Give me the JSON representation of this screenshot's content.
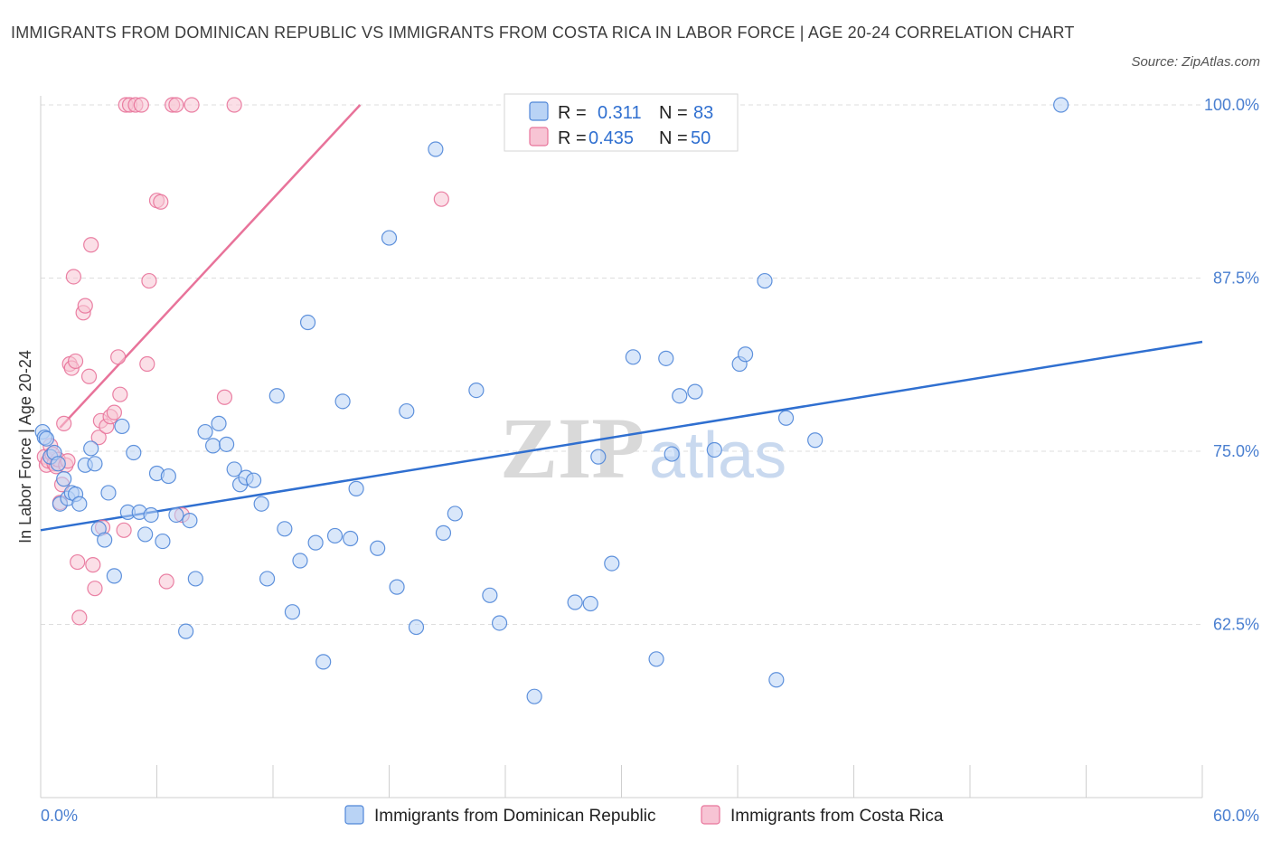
{
  "title": "IMMIGRANTS FROM DOMINICAN REPUBLIC VS IMMIGRANTS FROM COSTA RICA IN LABOR FORCE | AGE 20-24 CORRELATION CHART",
  "source": "Source: ZipAtlas.com",
  "watermark": {
    "zip": "ZIP",
    "atlas": "atlas"
  },
  "colors": {
    "blue": "#4f86d8",
    "blue_fill": "#b9d3f5",
    "pink": "#e8739a",
    "pink_fill": "#f7c4d4",
    "axis_label": "#4a7fd0",
    "grid": "#dddddd"
  },
  "legend": {
    "rows": [
      {
        "r_label": "R =",
        "r_value": "0.311",
        "n_label": "N =",
        "n_value": "83"
      },
      {
        "r_label": "R =",
        "r_value": "0.435",
        "n_label": "N =",
        "n_value": "50"
      }
    ]
  },
  "chart_data": {
    "type": "scatter",
    "title": "IMMIGRANTS FROM DOMINICAN REPUBLIC VS IMMIGRANTS FROM COSTA RICA IN LABOR FORCE | AGE 20-24 CORRELATION CHART",
    "xlabel": "",
    "ylabel": "In Labor Force | Age 20-24",
    "xlim": [
      0,
      60
    ],
    "ylim": [
      50,
      100
    ],
    "x_tick_labels": [
      "0.0%",
      "60.0%"
    ],
    "y_ticks": [
      62.5,
      75.0,
      87.5,
      100.0
    ],
    "y_tick_labels": [
      "62.5%",
      "75.0%",
      "87.5%",
      "100.0%"
    ],
    "grid": "horizontal dashed",
    "legend_position": "top-center",
    "series": [
      {
        "name": "Immigrants from Dominican Republic",
        "color": "#4f86d8",
        "r": 0.311,
        "n": 83,
        "trend": {
          "x": [
            0,
            60
          ],
          "y": [
            69.3,
            82.9
          ]
        },
        "points": [
          [
            0.1,
            76.4
          ],
          [
            0.2,
            76.0
          ],
          [
            0.3,
            75.9
          ],
          [
            0.5,
            74.6
          ],
          [
            0.7,
            74.9
          ],
          [
            0.9,
            74.1
          ],
          [
            1.0,
            71.2
          ],
          [
            1.2,
            73.0
          ],
          [
            1.4,
            71.6
          ],
          [
            1.6,
            72.0
          ],
          [
            1.8,
            71.9
          ],
          [
            2.0,
            71.2
          ],
          [
            2.3,
            74.0
          ],
          [
            2.6,
            75.2
          ],
          [
            2.8,
            74.1
          ],
          [
            3.0,
            69.4
          ],
          [
            3.3,
            68.6
          ],
          [
            3.5,
            72.0
          ],
          [
            3.8,
            66.0
          ],
          [
            4.2,
            76.8
          ],
          [
            4.5,
            70.6
          ],
          [
            4.8,
            74.9
          ],
          [
            5.1,
            70.6
          ],
          [
            5.4,
            69.0
          ],
          [
            5.7,
            70.4
          ],
          [
            6.0,
            73.4
          ],
          [
            6.3,
            68.5
          ],
          [
            6.6,
            73.2
          ],
          [
            7.0,
            70.4
          ],
          [
            7.5,
            62.0
          ],
          [
            7.7,
            70.0
          ],
          [
            8.0,
            65.8
          ],
          [
            8.5,
            76.4
          ],
          [
            8.9,
            75.4
          ],
          [
            9.2,
            77.0
          ],
          [
            9.6,
            75.5
          ],
          [
            10.0,
            73.7
          ],
          [
            10.3,
            72.6
          ],
          [
            10.6,
            73.1
          ],
          [
            11.0,
            72.9
          ],
          [
            11.4,
            71.2
          ],
          [
            11.7,
            65.8
          ],
          [
            12.2,
            79.0
          ],
          [
            12.6,
            69.4
          ],
          [
            13.0,
            63.4
          ],
          [
            13.4,
            67.1
          ],
          [
            13.8,
            84.3
          ],
          [
            14.2,
            68.4
          ],
          [
            14.6,
            59.8
          ],
          [
            15.2,
            68.9
          ],
          [
            15.6,
            78.6
          ],
          [
            16.0,
            68.7
          ],
          [
            16.3,
            72.3
          ],
          [
            17.4,
            68.0
          ],
          [
            18.0,
            90.4
          ],
          [
            18.4,
            65.2
          ],
          [
            18.9,
            77.9
          ],
          [
            19.4,
            62.3
          ],
          [
            20.4,
            96.8
          ],
          [
            20.8,
            69.1
          ],
          [
            21.4,
            70.5
          ],
          [
            22.5,
            79.4
          ],
          [
            23.2,
            64.6
          ],
          [
            23.7,
            62.6
          ],
          [
            25.5,
            57.3
          ],
          [
            27.6,
            64.1
          ],
          [
            28.4,
            64.0
          ],
          [
            28.8,
            74.6
          ],
          [
            29.5,
            66.9
          ],
          [
            30.6,
            81.8
          ],
          [
            31.8,
            60.0
          ],
          [
            32.3,
            81.7
          ],
          [
            32.6,
            74.8
          ],
          [
            33.0,
            79.0
          ],
          [
            33.8,
            79.3
          ],
          [
            34.8,
            75.1
          ],
          [
            36.1,
            81.3
          ],
          [
            36.4,
            82.0
          ],
          [
            37.4,
            87.3
          ],
          [
            38.5,
            77.4
          ],
          [
            40.0,
            75.8
          ],
          [
            38.0,
            58.5
          ],
          [
            52.7,
            100.0
          ]
        ]
      },
      {
        "name": "Immigrants from Costa Rica",
        "color": "#e8739a",
        "r": 0.435,
        "n": 50,
        "trend": {
          "x": [
            1.0,
            16.5
          ],
          "y": [
            76.7,
            100.0
          ]
        },
        "points": [
          [
            0.2,
            74.6
          ],
          [
            0.3,
            74.0
          ],
          [
            0.4,
            74.3
          ],
          [
            0.5,
            75.4
          ],
          [
            0.6,
            74.8
          ],
          [
            0.7,
            74.1
          ],
          [
            0.8,
            73.9
          ],
          [
            0.9,
            74.4
          ],
          [
            1.0,
            71.3
          ],
          [
            1.1,
            72.6
          ],
          [
            1.2,
            77.0
          ],
          [
            1.3,
            74.0
          ],
          [
            1.4,
            74.3
          ],
          [
            1.5,
            81.3
          ],
          [
            1.6,
            81.0
          ],
          [
            1.7,
            87.6
          ],
          [
            1.8,
            81.5
          ],
          [
            1.9,
            67.0
          ],
          [
            2.0,
            63.0
          ],
          [
            2.2,
            85.0
          ],
          [
            2.3,
            85.5
          ],
          [
            2.5,
            80.4
          ],
          [
            2.6,
            89.9
          ],
          [
            2.7,
            66.8
          ],
          [
            2.8,
            65.1
          ],
          [
            3.0,
            76.0
          ],
          [
            3.1,
            77.2
          ],
          [
            3.2,
            69.5
          ],
          [
            3.4,
            76.8
          ],
          [
            3.6,
            77.5
          ],
          [
            3.8,
            77.8
          ],
          [
            4.0,
            81.8
          ],
          [
            4.1,
            79.1
          ],
          [
            4.3,
            69.3
          ],
          [
            4.4,
            100.0
          ],
          [
            4.6,
            100.0
          ],
          [
            4.9,
            100.0
          ],
          [
            5.2,
            100.0
          ],
          [
            5.5,
            81.3
          ],
          [
            5.6,
            87.3
          ],
          [
            6.0,
            93.1
          ],
          [
            6.2,
            93.0
          ],
          [
            6.5,
            65.6
          ],
          [
            6.8,
            100.0
          ],
          [
            7.0,
            100.0
          ],
          [
            7.3,
            70.4
          ],
          [
            7.8,
            100.0
          ],
          [
            9.5,
            78.9
          ],
          [
            10.0,
            100.0
          ],
          [
            20.7,
            93.2
          ]
        ]
      }
    ]
  },
  "bottom_legend": [
    {
      "label": "Immigrants from Dominican Republic"
    },
    {
      "label": "Immigrants from Costa Rica"
    }
  ]
}
